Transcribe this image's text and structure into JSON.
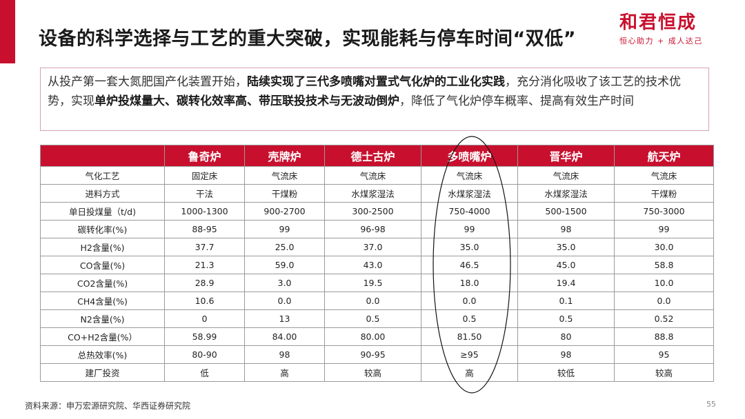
{
  "header": {
    "title": "设备的科学选择与工艺的重大突破，实现能耗与停车时间“双低”",
    "logo_main": "和君恒成",
    "logo_sub": "恒心助力 + 成人达己"
  },
  "summary": {
    "p1": "从投产第一套大氮肥国产化装置开始，",
    "b1": "陆续实现了三代多喷嘴对置式气化炉的工业化实践",
    "p2": "，充分消化吸收了该工艺的技术优势，实现",
    "b2": "单炉投煤量大、碳转化效率高、带压联投技术与无波动倒炉",
    "p3": "，降低了气化炉停车概率、提高有效生产时间"
  },
  "table": {
    "headers": [
      "",
      "鲁奇炉",
      "壳牌炉",
      "德士古炉",
      "多喷嘴炉",
      "晋华炉",
      "航天炉"
    ],
    "rows": [
      [
        "气化工艺",
        "固定床",
        "气流床",
        "气流床",
        "气流床",
        "气流床",
        "气流床"
      ],
      [
        "进料方式",
        "干法",
        "干煤粉",
        "水煤浆湿法",
        "水煤浆湿法",
        "水煤浆湿法",
        "干煤粉"
      ],
      [
        "单日投煤量（t/d)",
        "1000-1300",
        "900-2700",
        "300-2500",
        "750-4000",
        "500-1500",
        "750-3000"
      ],
      [
        "碳转化率(%)",
        "88-95",
        "99",
        "96-98",
        "99",
        "98",
        "99"
      ],
      [
        "H2含量(%)",
        "37.7",
        "25.0",
        "37.0",
        "35.0",
        "35.0",
        "30.0"
      ],
      [
        "CO含量(%)",
        "21.3",
        "59.0",
        "43.0",
        "46.5",
        "45.0",
        "58.8"
      ],
      [
        "CO2含量(%)",
        "28.9",
        "3.0",
        "19.5",
        "18.0",
        "19.4",
        "10.0"
      ],
      [
        "CH4含量(%)",
        "10.6",
        "0.0",
        "0.0",
        "0.0",
        "0.1",
        "0.0"
      ],
      [
        "N2含量(%)",
        "0",
        "13",
        "0.5",
        "0.5",
        "0.5",
        "0.52"
      ],
      [
        "CO+H2含量(%）",
        "58.99",
        "84.00",
        "80.00",
        "81.50",
        "80",
        "88.8"
      ],
      [
        "总热效率(%)",
        "80-90",
        "98",
        "90-95",
        "≥95",
        "98",
        "95"
      ],
      [
        "建厂投资",
        "低",
        "高",
        "较高",
        "高",
        "较低",
        "较高"
      ]
    ]
  },
  "footer": {
    "source": "资料来源：申万宏源研究院、华西证券研究院",
    "page": "55"
  },
  "colors": {
    "accent": "#c8102e",
    "border": "#d8a0b4"
  }
}
